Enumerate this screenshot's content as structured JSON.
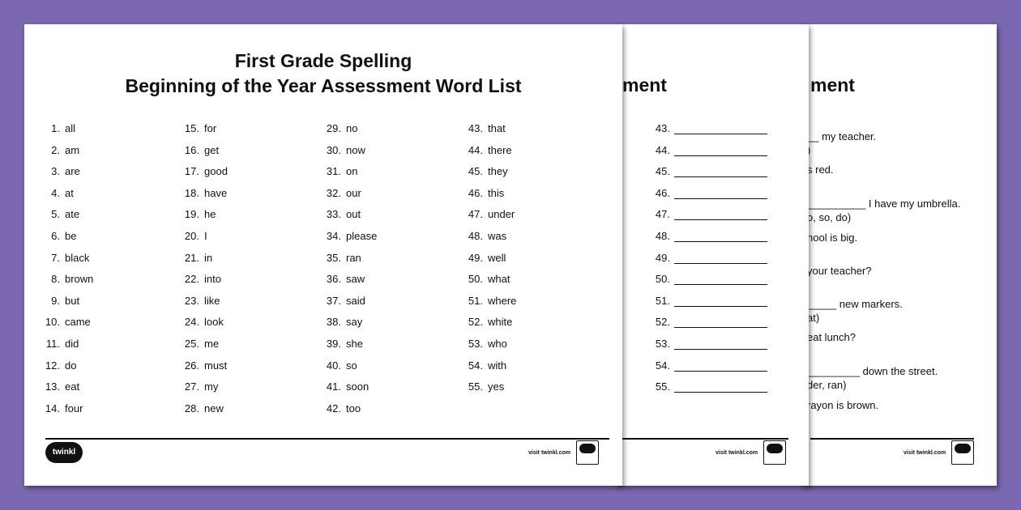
{
  "front": {
    "title_line1": "First Grade Spelling",
    "title_line2": "Beginning of the Year Assessment Word List",
    "words": [
      "all",
      "am",
      "are",
      "at",
      "ate",
      "be",
      "black",
      "brown",
      "but",
      "came",
      "did",
      "do",
      "eat",
      "four",
      "for",
      "get",
      "good",
      "have",
      "he",
      "I",
      "in",
      "into",
      "like",
      "look",
      "me",
      "must",
      "my",
      "new",
      "no",
      "now",
      "on",
      "our",
      "out",
      "please",
      "ran",
      "saw",
      "said",
      "say",
      "she",
      "so",
      "soon",
      "too",
      "that",
      "there",
      "they",
      "this",
      "under",
      "was",
      "well",
      "what",
      "where",
      "white",
      "who",
      "with",
      "yes"
    ],
    "logo": "twinkl",
    "visit": "visit twinkl.com"
  },
  "middle": {
    "title_fragment": "ment",
    "numbers": [
      "43.",
      "44.",
      "45.",
      "46.",
      "47.",
      "48.",
      "49.",
      "50.",
      "51.",
      "52.",
      "53.",
      "54.",
      "55."
    ],
    "visit": "visit twinkl.com"
  },
  "back": {
    "title_fragment": "ment",
    "lines": [
      "__ my teacher.",
      ")",
      "s red.",
      "__________ I have my umbrella.",
      "o, so, do)",
      "hool is big.",
      "your teacher?",
      "_____ new markers.",
      "at)",
      "eat lunch?",
      "_________ down the street.",
      "der, ran)",
      "rayon is brown."
    ],
    "visit": "visit twinkl.com"
  }
}
